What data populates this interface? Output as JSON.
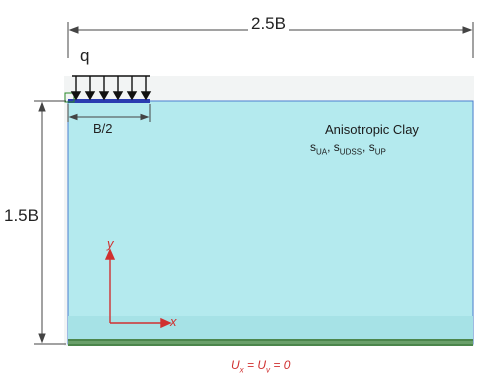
{
  "dimensions": {
    "width_label": "2.5B",
    "depth_label": "1.5B",
    "footing_label": "B/2"
  },
  "load": {
    "label": "q"
  },
  "material": {
    "name": "Anisotropic Clay",
    "parameters": "s_UA, s_UDSS, s_UP"
  },
  "axes": {
    "x_label": "x",
    "y_label": "y"
  },
  "boundary": {
    "label": "Ux = Uv = 0"
  },
  "colors": {
    "soil_fill": "#b4eaee",
    "soil_border": "#4a7fd0",
    "footing": "#2a3cb0",
    "axis_red": "#d03030",
    "fixity_green": "#4a8a4a"
  }
}
